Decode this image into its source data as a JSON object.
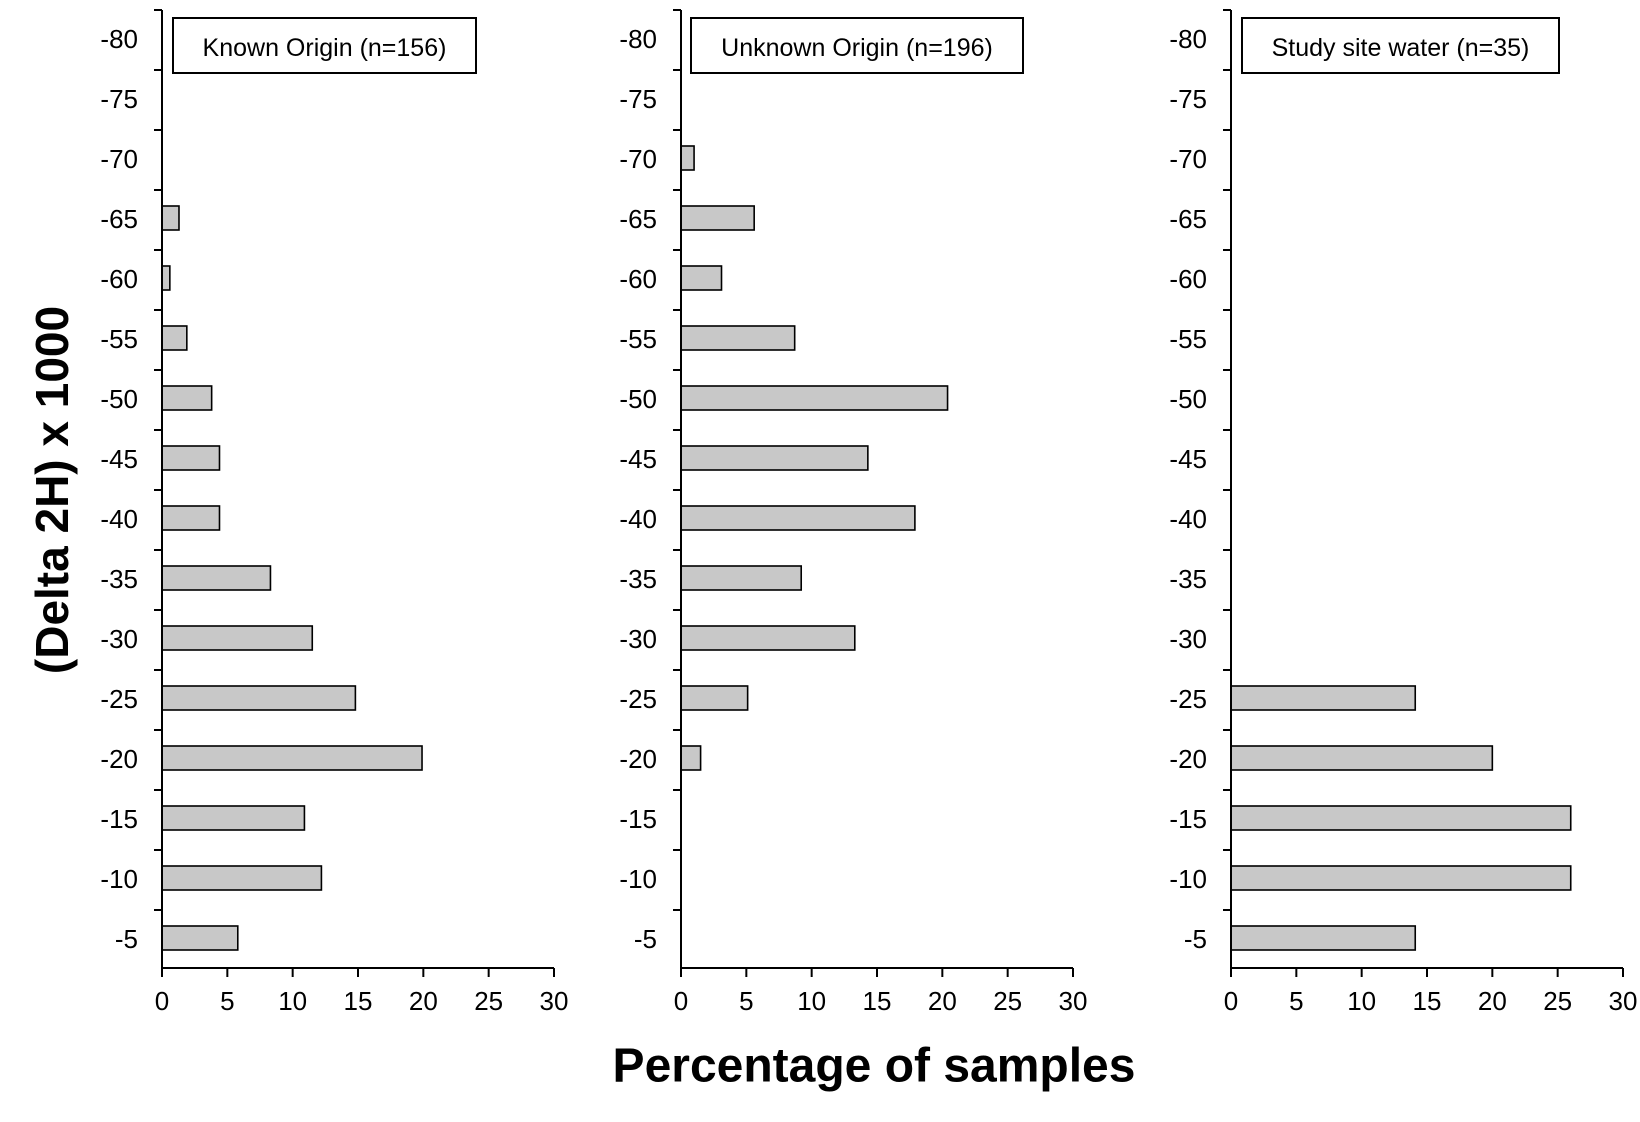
{
  "chart_data": {
    "type": "bar",
    "orientation": "horizontal",
    "xlabel": "Percentage of samples",
    "ylabel": "(Delta 2H) x 1000",
    "categories": [
      -80,
      -75,
      -70,
      -65,
      -60,
      -55,
      -50,
      -45,
      -40,
      -35,
      -30,
      -25,
      -20,
      -15,
      -10,
      -5
    ],
    "xlim": [
      0,
      30
    ],
    "xticks": [
      0,
      5,
      10,
      15,
      20,
      25,
      30
    ],
    "grid": false,
    "bar_color": "#c8c8c8",
    "panels": [
      {
        "title": "Known Origin (n=156)",
        "values": [
          0,
          0,
          0,
          1.3,
          0.6,
          1.9,
          3.8,
          4.4,
          4.4,
          8.3,
          11.5,
          14.8,
          19.9,
          10.9,
          12.2,
          5.8
        ]
      },
      {
        "title": "Unknown Origin (n=196)",
        "values": [
          0,
          0,
          1.0,
          5.6,
          3.1,
          8.7,
          20.4,
          14.3,
          17.9,
          9.2,
          13.3,
          5.1,
          1.5,
          0,
          0,
          0
        ]
      },
      {
        "title": "Study site water (n=35)",
        "values": [
          0,
          0,
          0,
          0,
          0,
          0,
          0,
          0,
          0,
          0,
          0,
          14.1,
          20.0,
          26.0,
          26.0,
          14.1
        ]
      }
    ]
  }
}
